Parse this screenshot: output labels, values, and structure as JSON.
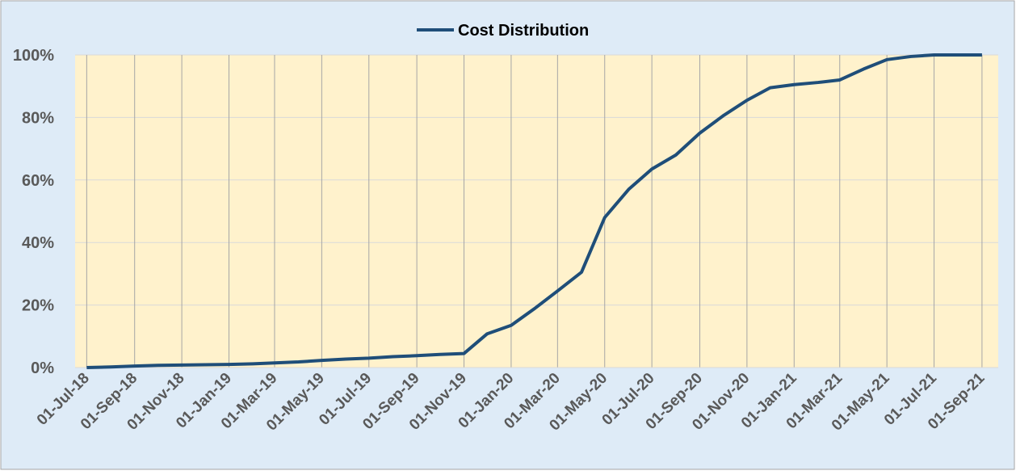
{
  "chart_data": {
    "type": "line",
    "x": [
      "2018-07-01",
      "2018-08-01",
      "2018-09-01",
      "2018-10-01",
      "2018-11-01",
      "2018-12-01",
      "2019-01-01",
      "2019-02-01",
      "2019-03-01",
      "2019-04-01",
      "2019-05-01",
      "2019-06-01",
      "2019-07-01",
      "2019-08-01",
      "2019-09-01",
      "2019-10-01",
      "2019-11-01",
      "2019-12-01",
      "2020-01-01",
      "2020-02-01",
      "2020-03-01",
      "2020-04-01",
      "2020-05-01",
      "2020-06-01",
      "2020-07-01",
      "2020-08-01",
      "2020-09-01",
      "2020-10-01",
      "2020-11-01",
      "2020-12-01",
      "2021-01-01",
      "2021-02-01",
      "2021-03-01",
      "2021-04-01",
      "2021-05-01",
      "2021-06-01",
      "2021-07-01",
      "2021-08-01",
      "2021-09-01"
    ],
    "series": [
      {
        "name": "Cost Distribution",
        "color": "#1f4e79",
        "values": [
          0,
          0.2,
          0.5,
          0.7,
          0.8,
          0.9,
          1.0,
          1.2,
          1.5,
          1.8,
          2.3,
          2.7,
          3.0,
          3.5,
          3.8,
          4.2,
          4.5,
          10.8,
          13.5,
          19,
          24.5,
          30.5,
          48,
          57,
          63.5,
          68,
          75,
          80.5,
          85.5,
          89.5,
          90.5,
          91.2,
          92,
          95.5,
          98.5,
          99.5,
          100,
          100,
          100
        ]
      }
    ],
    "xlim": [
      "2018-06-16",
      "2021-09-22"
    ],
    "xticks": [
      {
        "value": "2018-07-01",
        "label": "01-Jul-18"
      },
      {
        "value": "2018-09-01",
        "label": "01-Sep-18"
      },
      {
        "value": "2018-11-01",
        "label": "01-Nov-18"
      },
      {
        "value": "2019-01-01",
        "label": "01-Jan-19"
      },
      {
        "value": "2019-03-01",
        "label": "01-Mar-19"
      },
      {
        "value": "2019-05-01",
        "label": "01-May-19"
      },
      {
        "value": "2019-07-01",
        "label": "01-Jul-19"
      },
      {
        "value": "2019-09-01",
        "label": "01-Sep-19"
      },
      {
        "value": "2019-11-01",
        "label": "01-Nov-19"
      },
      {
        "value": "2020-01-01",
        "label": "01-Jan-20"
      },
      {
        "value": "2020-03-01",
        "label": "01-Mar-20"
      },
      {
        "value": "2020-05-01",
        "label": "01-May-20"
      },
      {
        "value": "2020-07-01",
        "label": "01-Jul-20"
      },
      {
        "value": "2020-09-01",
        "label": "01-Sep-20"
      },
      {
        "value": "2020-11-01",
        "label": "01-Nov-20"
      },
      {
        "value": "2021-01-01",
        "label": "01-Jan-21"
      },
      {
        "value": "2021-03-01",
        "label": "01-Mar-21"
      },
      {
        "value": "2021-05-01",
        "label": "01-May-21"
      },
      {
        "value": "2021-07-01",
        "label": "01-Jul-21"
      },
      {
        "value": "2021-09-01",
        "label": "01-Sep-21"
      }
    ],
    "ylim": [
      0,
      100
    ],
    "yticks": [
      {
        "value": 0,
        "label": "0%"
      },
      {
        "value": 20,
        "label": "20%"
      },
      {
        "value": 40,
        "label": "40%"
      },
      {
        "value": 60,
        "label": "60%"
      },
      {
        "value": 80,
        "label": "80%"
      },
      {
        "value": 100,
        "label": "100%"
      }
    ],
    "grid": true,
    "legend": "top",
    "plot_background": "#fff2cc",
    "background": "#deebf7"
  }
}
